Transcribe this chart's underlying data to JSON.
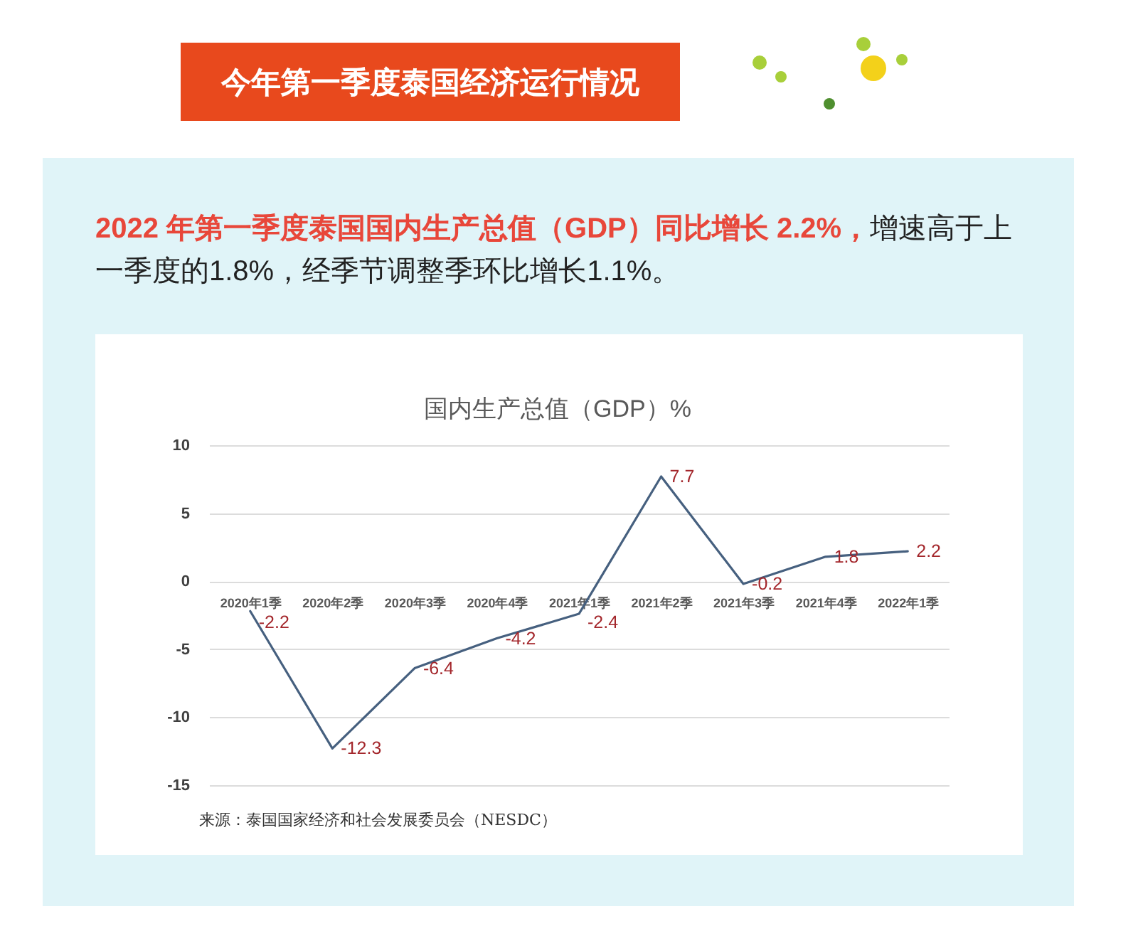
{
  "chart_data": {
    "type": "line",
    "title": "国内生产总值（GDP）%",
    "categories": [
      "2020年1季",
      "2020年2季",
      "2020年3季",
      "2020年4季",
      "2021年1季",
      "2021年2季",
      "2021年3季",
      "2021年4季",
      "2022年1季"
    ],
    "series": [
      {
        "color": "#46607f",
        "values": [
          -2.2,
          -12.3,
          -6.4,
          -4.2,
          -2.4,
          7.7,
          -0.2,
          1.8,
          2.2
        ]
      }
    ],
    "ylim": [
      -15,
      10
    ],
    "yticks": [
      -15,
      -10,
      -5,
      0,
      5,
      10
    ],
    "grid": "y",
    "data_labels": true,
    "annotations": [
      "今年第一季度泰国经济运行情况",
      "2022 年第一季度泰国国内生产总值（GDP）同比增长 2.2%，",
      "增速高于上一季度的1.8%，经季节调整季环比增长1.1%。",
      "来源：泰国国家经济和社会发展委员会（NESDC）"
    ]
  }
}
